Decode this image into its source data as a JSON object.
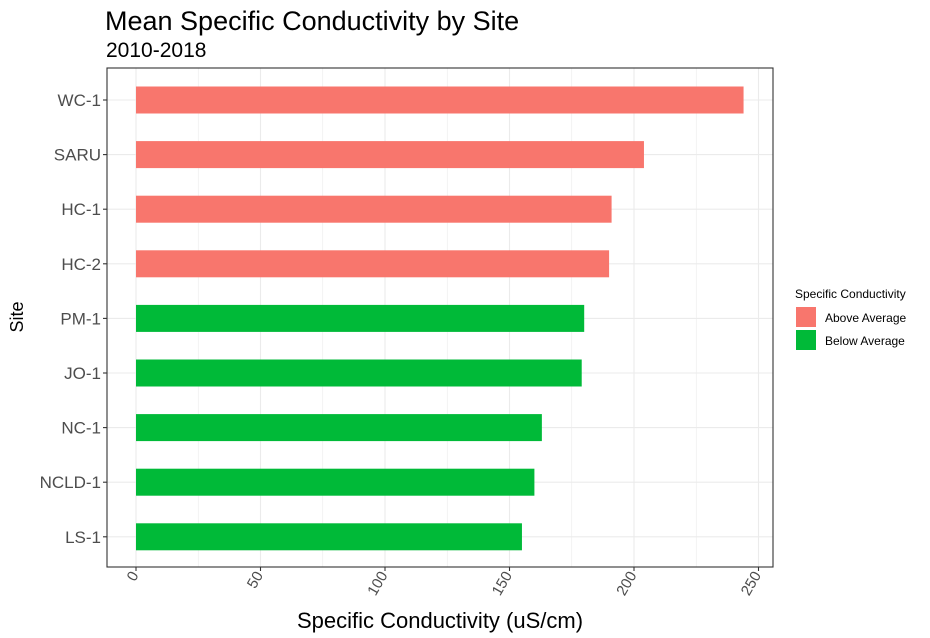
{
  "chart_data": {
    "type": "bar",
    "orientation": "horizontal",
    "title": "Mean Specific Conductivity by Site",
    "subtitle": "2010-2018",
    "xlabel": "Specific Conductivity (uS/cm)",
    "ylabel": "Site",
    "xlim": [
      0,
      255
    ],
    "xticks": [
      0,
      50,
      100,
      150,
      200,
      250
    ],
    "grid": true,
    "legend_position": "right",
    "legend_title": "Specific Conductivity",
    "groups": [
      {
        "name": "Above Average",
        "color": "#F8766D"
      },
      {
        "name": "Below Average",
        "color": "#00BA38"
      }
    ],
    "categories": [
      "WC-1",
      "SARU",
      "HC-1",
      "HC-2",
      "PM-1",
      "JO-1",
      "NC-1",
      "NCLD-1",
      "LS-1"
    ],
    "values": [
      244,
      204,
      191,
      190,
      180,
      179,
      163,
      160,
      155
    ],
    "group": [
      "Above Average",
      "Above Average",
      "Above Average",
      "Above Average",
      "Below Average",
      "Below Average",
      "Below Average",
      "Below Average",
      "Below Average"
    ]
  }
}
